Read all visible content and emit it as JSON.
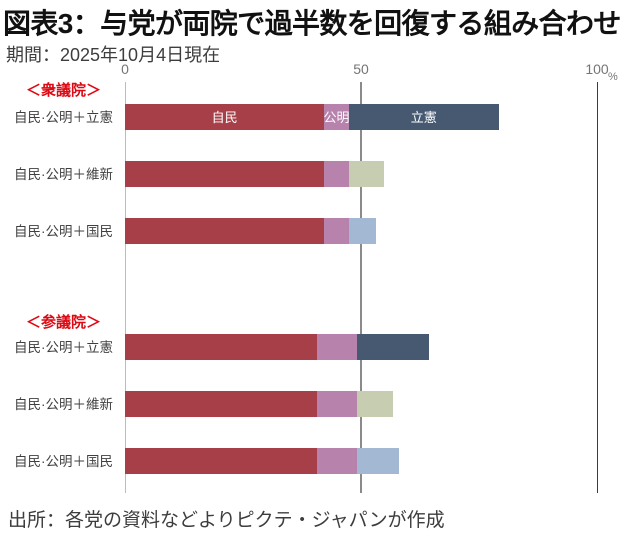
{
  "title": "図表3：与党が両院で過半数を回復する組み合わせ",
  "subtitle": "期間：2025年10月4日現在",
  "source": "出所：各党の資料などよりピクテ・ジャパンが作成",
  "colors": {
    "jimin": "#a63f48",
    "komei": "#b783ad",
    "rikken": "#475971",
    "ishin": "#c6cdb1",
    "kokumin": "#a3b8d2",
    "section_label": "#dc0a14",
    "majority_gridline": "#8a8a8a"
  },
  "chart_data": {
    "type": "bar",
    "orientation": "horizontal",
    "unit": "%",
    "xlim": [
      0,
      100
    ],
    "axis_ticks": [
      {
        "value": 0,
        "label": "0"
      },
      {
        "value": 50,
        "label": "50"
      },
      {
        "value": 100,
        "label": "100"
      }
    ],
    "grid": true,
    "groups": [
      {
        "key": "shugiin",
        "name": "＜衆議院＞",
        "rows": [
          {
            "label": "自民·公明＋立憲",
            "segments": [
              {
                "party": "自民",
                "party_key": "jimin",
                "percent": 42.2,
                "color_key": "jimin",
                "label_visible": true
              },
              {
                "party": "公明",
                "party_key": "komei",
                "percent": 5.2,
                "color_key": "komei",
                "label_visible": true
              },
              {
                "party": "立憲",
                "party_key": "rikken",
                "percent": 31.8,
                "color_key": "rikken",
                "label_visible": true
              }
            ]
          },
          {
            "label": "自民·公明＋維新",
            "segments": [
              {
                "party": "自民",
                "party_key": "jimin",
                "percent": 42.2,
                "color_key": "jimin",
                "label_visible": false
              },
              {
                "party": "公明",
                "party_key": "komei",
                "percent": 5.2,
                "color_key": "komei",
                "label_visible": false
              },
              {
                "party": "維新",
                "party_key": "ishin",
                "percent": 7.5,
                "color_key": "ishin",
                "label_visible": false
              }
            ]
          },
          {
            "label": "自民·公明＋国民",
            "segments": [
              {
                "party": "自民",
                "party_key": "jimin",
                "percent": 42.2,
                "color_key": "jimin",
                "label_visible": false
              },
              {
                "party": "公明",
                "party_key": "komei",
                "percent": 5.2,
                "color_key": "komei",
                "label_visible": false
              },
              {
                "party": "国民",
                "party_key": "kokumin",
                "percent": 5.8,
                "color_key": "kokumin",
                "label_visible": false
              }
            ]
          }
        ]
      },
      {
        "key": "sangiin",
        "name": "＜参議院＞",
        "rows": [
          {
            "label": "自民·公明＋立憲",
            "segments": [
              {
                "party": "自民",
                "party_key": "jimin",
                "percent": 40.7,
                "color_key": "jimin",
                "label_visible": false
              },
              {
                "party": "公明",
                "party_key": "komei",
                "percent": 8.5,
                "color_key": "komei",
                "label_visible": false
              },
              {
                "party": "立憲",
                "party_key": "rikken",
                "percent": 15.3,
                "color_key": "rikken",
                "label_visible": false
              }
            ]
          },
          {
            "label": "自民·公明＋維新",
            "segments": [
              {
                "party": "自民",
                "party_key": "jimin",
                "percent": 40.7,
                "color_key": "jimin",
                "label_visible": false
              },
              {
                "party": "公明",
                "party_key": "komei",
                "percent": 8.5,
                "color_key": "komei",
                "label_visible": false
              },
              {
                "party": "維新",
                "party_key": "ishin",
                "percent": 7.7,
                "color_key": "ishin",
                "label_visible": false
              }
            ]
          },
          {
            "label": "自民·公明＋国民",
            "segments": [
              {
                "party": "自民",
                "party_key": "jimin",
                "percent": 40.7,
                "color_key": "jimin",
                "label_visible": false
              },
              {
                "party": "公明",
                "party_key": "komei",
                "percent": 8.5,
                "color_key": "komei",
                "label_visible": false
              },
              {
                "party": "国民",
                "party_key": "kokumin",
                "percent": 8.9,
                "color_key": "kokumin",
                "label_visible": false
              }
            ]
          }
        ]
      }
    ]
  }
}
